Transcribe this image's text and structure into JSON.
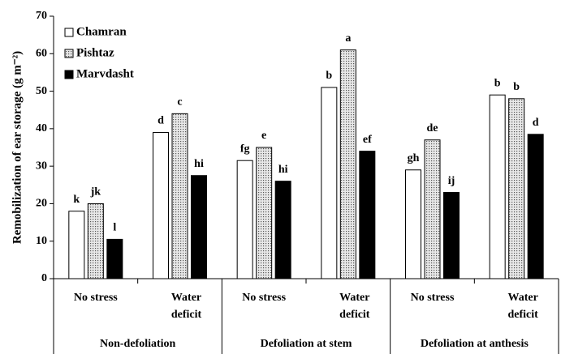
{
  "chart_data": {
    "type": "bar",
    "y_label": "Remobilization of ear storage (g m⁻²)",
    "categories": [
      [
        "No stress"
      ],
      [
        "Water",
        "deficit"
      ],
      [
        "No stress"
      ],
      [
        "Water",
        "deficit"
      ],
      [
        "No stress"
      ],
      [
        "Water",
        "deficit"
      ]
    ],
    "groups": [
      "Non-defoliation",
      "Defoliation at stem",
      "Defoliation at anthesis"
    ],
    "series": [
      {
        "name": "Chamran",
        "color": "#ffffff",
        "values": [
          18,
          39,
          31.5,
          51,
          29,
          49
        ],
        "letters": [
          "k",
          "d",
          "fg",
          "b",
          "gh",
          "b"
        ]
      },
      {
        "name": "Pishtaz",
        "color": "#d0d0d0",
        "pattern": "dots",
        "values": [
          20,
          44,
          35,
          61,
          37,
          48
        ],
        "letters": [
          "jk",
          "c",
          "e",
          "a",
          "de",
          "b"
        ]
      },
      {
        "name": "Marvdasht",
        "color": "#000000",
        "values": [
          10.5,
          27.5,
          26,
          34,
          23,
          38.5
        ],
        "letters": [
          "l",
          "hi",
          "hi",
          "ef",
          "ij",
          "d"
        ]
      }
    ],
    "ylim": [
      0,
      70
    ],
    "yticks": [
      0,
      10,
      20,
      30,
      40,
      50,
      60,
      70
    ],
    "grid": false,
    "legend": "upper left"
  }
}
